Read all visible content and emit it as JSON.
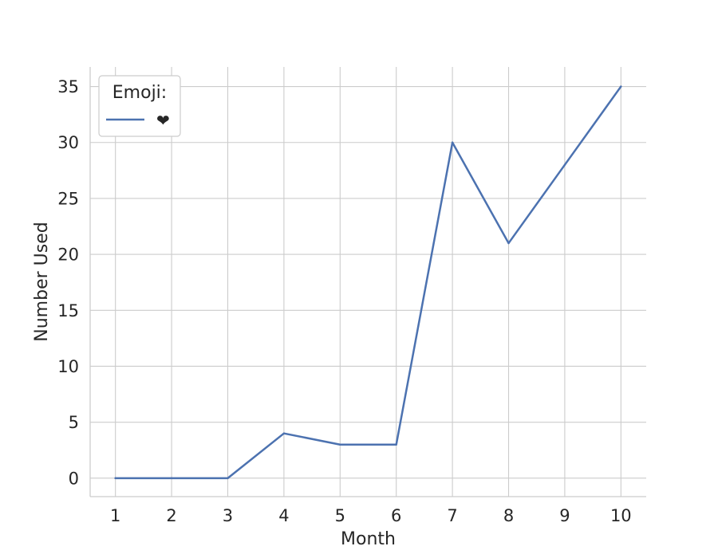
{
  "chart_data": {
    "type": "line",
    "x": [
      1,
      2,
      3,
      4,
      5,
      6,
      7,
      8,
      9,
      10
    ],
    "series": [
      {
        "name": "❤",
        "values": [
          0,
          0,
          0,
          4,
          3,
          3,
          30,
          21,
          28,
          35
        ],
        "color": "#4c72b0"
      }
    ],
    "xlabel": "Month",
    "ylabel": "Number Used",
    "xticks": [
      "1",
      "2",
      "3",
      "4",
      "5",
      "6",
      "7",
      "8",
      "9",
      "10"
    ],
    "yticks": [
      "0",
      "5",
      "10",
      "15",
      "20",
      "25",
      "30",
      "35"
    ],
    "xlim": [
      0.55,
      10.45
    ],
    "ylim": [
      -1.65,
      36.75
    ],
    "grid": true,
    "legend": {
      "title": "Emoji:",
      "placement": "top-left"
    }
  }
}
